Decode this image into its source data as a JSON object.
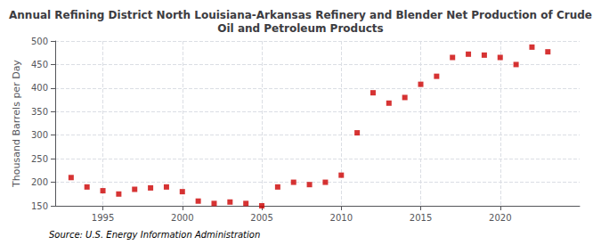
{
  "chart_data": {
    "type": "scatter",
    "title": "Annual Refining District North Louisiana-Arkansas Refinery and Blender Net Production of Crude\nOil and Petroleum Products",
    "ylabel": "Thousand Barrels per Day",
    "source": "Source: U.S. Energy Information Administration",
    "x": [
      1993,
      1994,
      1995,
      1996,
      1997,
      1998,
      1999,
      2000,
      2001,
      2002,
      2003,
      2004,
      2005,
      2006,
      2007,
      2008,
      2009,
      2010,
      2011,
      2012,
      2013,
      2014,
      2015,
      2016,
      2017,
      2018,
      2019,
      2020,
      2021,
      2022,
      2023
    ],
    "values": [
      210,
      190,
      182,
      175,
      185,
      188,
      190,
      180,
      160,
      155,
      158,
      155,
      150,
      190,
      200,
      195,
      200,
      215,
      305,
      390,
      368,
      380,
      408,
      425,
      465,
      472,
      470,
      465,
      450,
      487,
      477
    ],
    "color": "#cc0000",
    "marker": "square",
    "xlim": [
      1992,
      2025
    ],
    "xticks": [
      1995,
      2000,
      2005,
      2010,
      2015,
      2020
    ],
    "ylim": [
      150,
      500
    ],
    "yticks": [
      150,
      200,
      250,
      300,
      350,
      400,
      450,
      500
    ],
    "grid": true
  }
}
